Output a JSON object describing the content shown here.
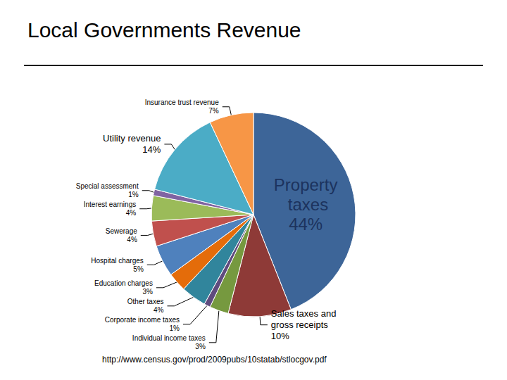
{
  "chart_data": {
    "type": "pie",
    "title": "Local Governments Revenue",
    "source": "http://www.census.gov/prod/2009pubs/10statab/stlocgov.pdf",
    "categories": [
      "Property taxes",
      "Sales taxes and gross receipts",
      "Individual income taxes",
      "Corporate income taxes",
      "Other taxes",
      "Education charges",
      "Hospital charges",
      "Sewerage",
      "Interest earnings",
      "Special assessment",
      "Utility revenue",
      "Insurance trust revenue"
    ],
    "values": [
      44,
      10,
      3,
      1,
      4,
      3,
      5,
      4,
      4,
      1,
      14,
      7
    ],
    "value_labels": [
      "44%",
      "10%",
      "3%",
      "1%",
      "4%",
      "3%",
      "5%",
      "4%",
      "4%",
      "1%",
      "14%",
      "7%"
    ],
    "colors": [
      "#3d6598",
      "#8e3a37",
      "#76993f",
      "#5f4b7e",
      "#31859c",
      "#e46c0a",
      "#4f81bd",
      "#c0504d",
      "#9bbb59",
      "#8064a2",
      "#4bacc6",
      "#f79646"
    ],
    "data_labels": true
  }
}
